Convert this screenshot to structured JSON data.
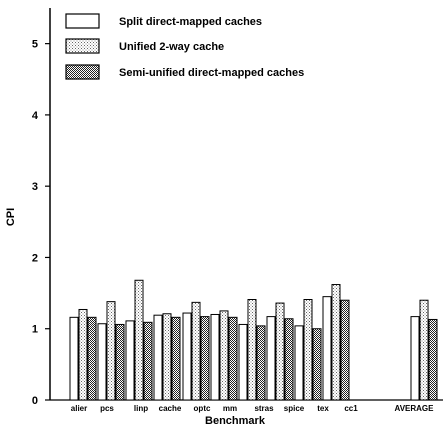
{
  "chart_data": {
    "type": "bar",
    "xlabel": "Benchmark",
    "ylabel": "CPI",
    "ylim": [
      0,
      5.5
    ],
    "yticks": [
      0,
      1,
      2,
      3,
      4,
      5
    ],
    "grid": false,
    "legend_position": "top-left",
    "categories": [
      "alier",
      "pcs",
      "linp",
      "cache",
      "optc",
      "mm",
      "stras",
      "spice",
      "tex",
      "cc1",
      "AVERAGE"
    ],
    "series": [
      {
        "name": "Split direct-mapped caches",
        "pattern": "none",
        "values": [
          1.16,
          1.07,
          1.11,
          1.19,
          1.22,
          1.2,
          1.06,
          1.17,
          1.04,
          1.45,
          1.17
        ]
      },
      {
        "name": "Unified 2-way cache",
        "pattern": "light-dots",
        "values": [
          1.27,
          1.38,
          1.68,
          1.21,
          1.37,
          1.25,
          1.41,
          1.36,
          1.41,
          1.62,
          1.4
        ]
      },
      {
        "name": "Semi-unified direct-mapped caches",
        "pattern": "dense-dots",
        "values": [
          1.16,
          1.06,
          1.09,
          1.16,
          1.17,
          1.16,
          1.04,
          1.14,
          1.0,
          1.4,
          1.13
        ]
      }
    ]
  }
}
